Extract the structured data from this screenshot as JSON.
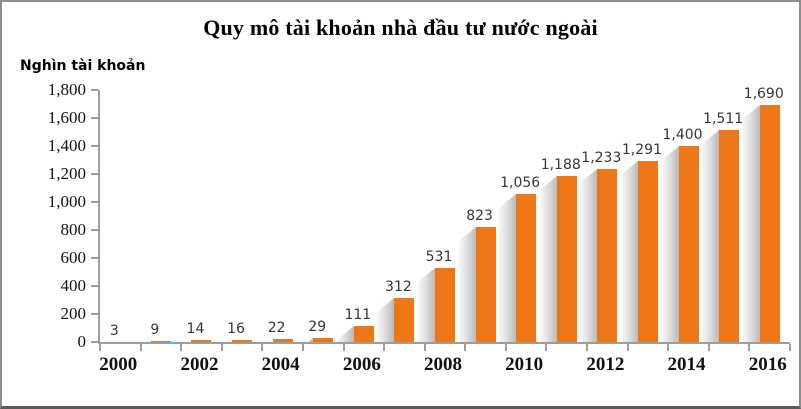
{
  "frame": {
    "background": "#ffffff",
    "border_color": "#8e8e8e"
  },
  "chart_data": {
    "type": "bar",
    "title": "Quy mô tài khoản nhà đầu tư nước ngoài",
    "ylabel": "Nghìn tài khoản",
    "xlabel": "",
    "categories": [
      2000,
      2001,
      2002,
      2003,
      2004,
      2005,
      2006,
      2007,
      2008,
      2009,
      2010,
      2011,
      2012,
      2013,
      2014,
      2015,
      2016
    ],
    "values": [
      3,
      9,
      14,
      16,
      22,
      29,
      111,
      312,
      531,
      823,
      1056,
      1188,
      1233,
      1291,
      1400,
      1511,
      1690
    ],
    "labels": [
      "3",
      "9",
      "14",
      "16",
      "22",
      "29",
      "111",
      "312",
      "531",
      "823",
      "1,056",
      "1,188",
      "1,233",
      "1,291",
      "1,400",
      "1,511",
      "1,690"
    ],
    "x_tick_labels": [
      "2000",
      "2002",
      "2004",
      "2006",
      "2008",
      "2010",
      "2012",
      "2014",
      "2016"
    ],
    "y_ticks": [
      "1,800",
      "1,600",
      "1,400",
      "1,200",
      "1,000",
      "800",
      "600",
      "400",
      "200",
      "0"
    ],
    "ylim": [
      0,
      1800
    ],
    "y_step": 200,
    "grid": false,
    "legend": "none",
    "bar_color": "#ED7617",
    "axis_color": "#9d9d9d",
    "shadow_style": "diagonal gray shadow to left of each bar"
  }
}
